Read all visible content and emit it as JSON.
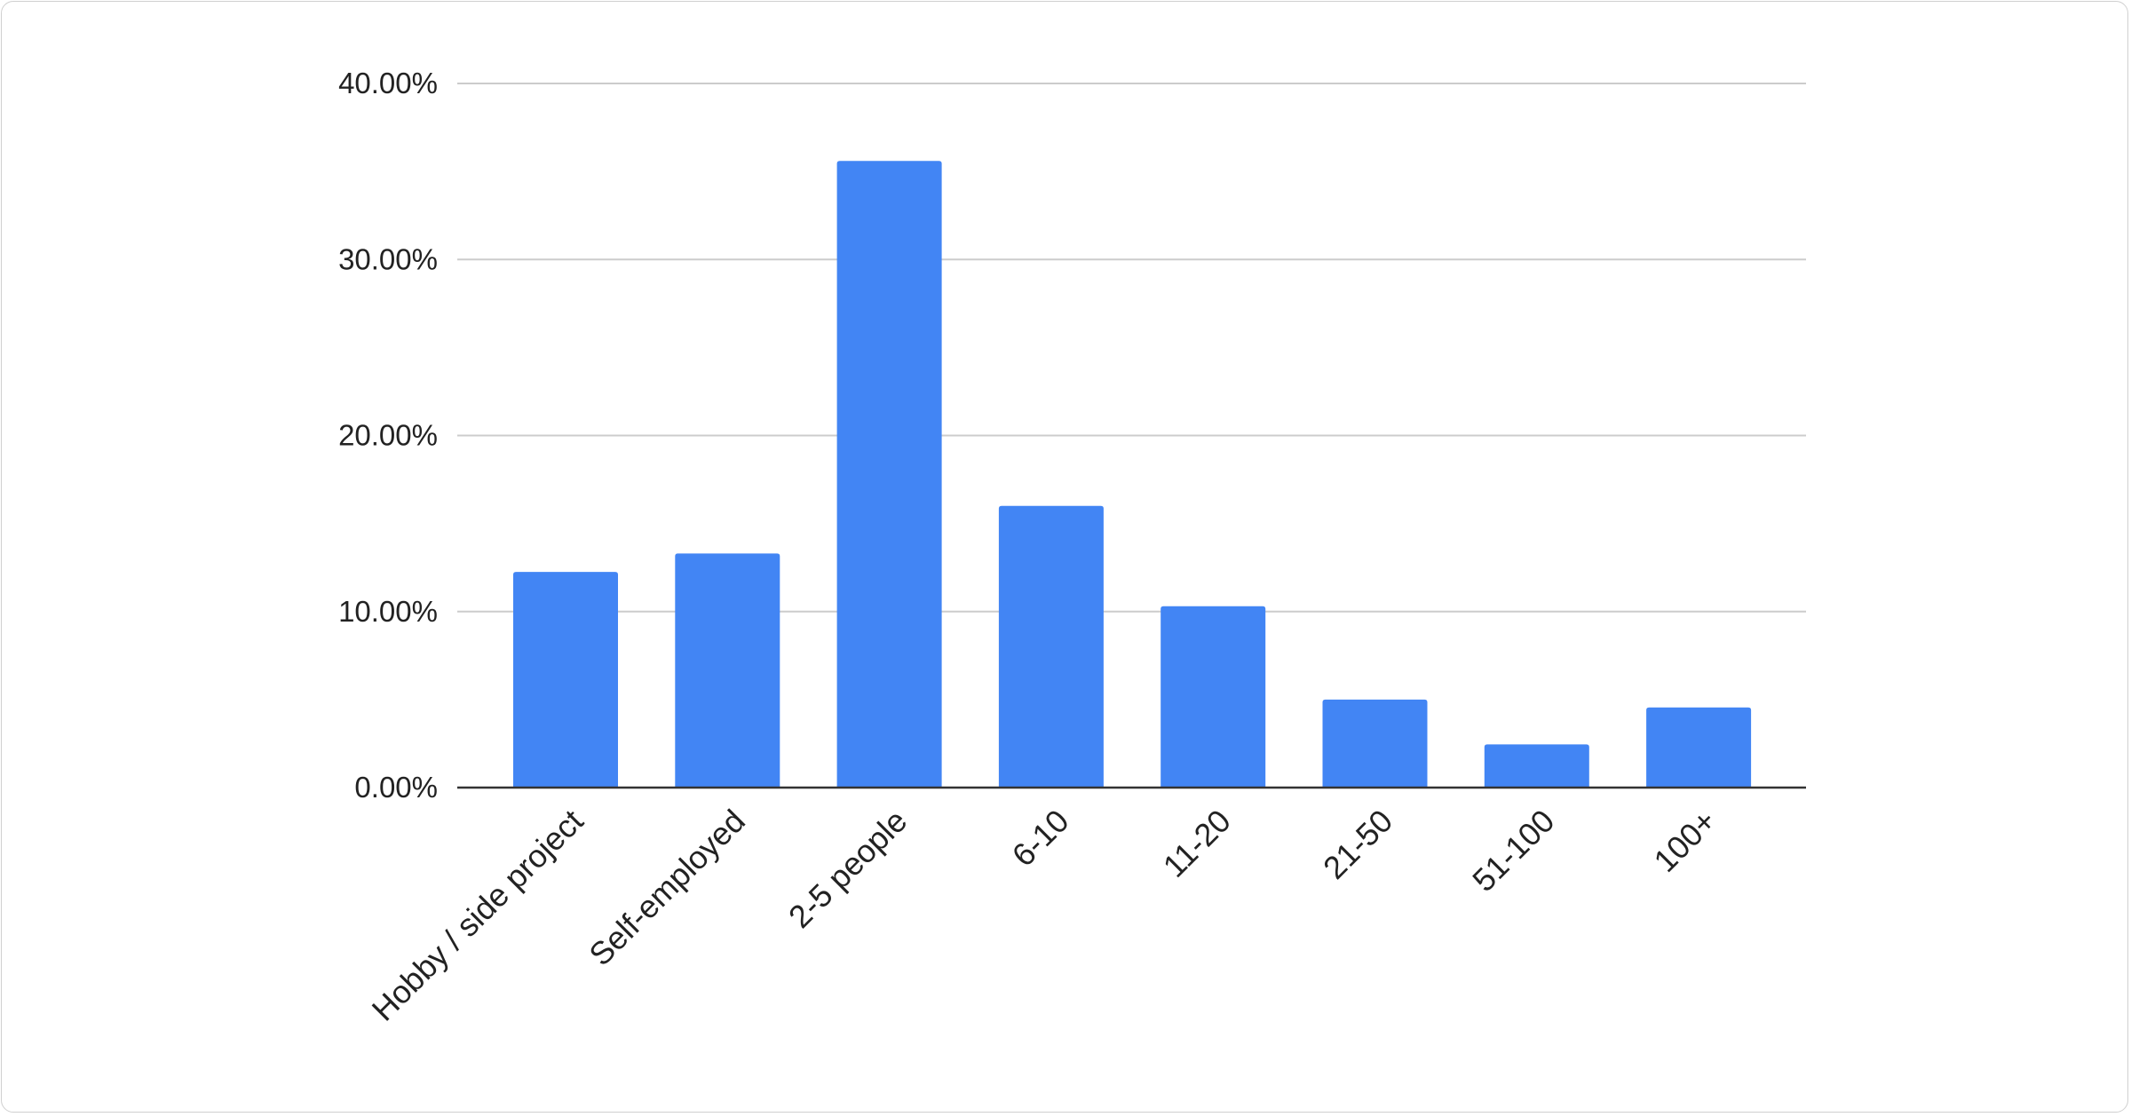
{
  "chart_data": {
    "type": "bar",
    "title": "",
    "xlabel": "",
    "ylabel": "",
    "categories": [
      "Hobby / side project",
      "Self-employed",
      "2-5 people",
      "6-10",
      "11-20",
      "21-50",
      "51-100",
      "100+"
    ],
    "values": [
      12.25,
      13.3,
      35.6,
      16.0,
      10.3,
      5.0,
      2.45,
      4.55
    ],
    "value_unit": "%",
    "ylim": [
      0,
      40
    ],
    "yticks": [
      "0.00%",
      "10.00%",
      "20.00%",
      "30.00%",
      "40.00%"
    ],
    "grid": true,
    "legend": "none",
    "bar_color": "#4285f4"
  }
}
